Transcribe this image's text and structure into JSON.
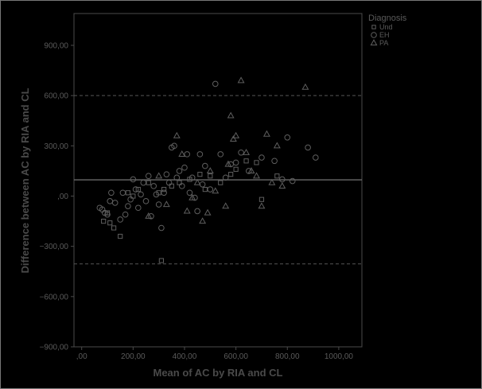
{
  "chart_data": {
    "type": "scatter",
    "title": "",
    "xlabel": "Mean of AC by RIA and CL",
    "ylabel": "Difference between AC by RIA and CL",
    "xlim": [
      -30,
      1090
    ],
    "ylim": [
      -900,
      1090
    ],
    "x_ticks": [
      {
        "value": 0,
        "label": ",00"
      },
      {
        "value": 200,
        "label": "200,00"
      },
      {
        "value": 400,
        "label": "400,00"
      },
      {
        "value": 600,
        "label": "600,00"
      },
      {
        "value": 800,
        "label": "800,00"
      },
      {
        "value": 1000,
        "label": "1000,00"
      }
    ],
    "y_ticks": [
      {
        "value": -900,
        "label": "−900,00"
      },
      {
        "value": -600,
        "label": "−600,00"
      },
      {
        "value": -300,
        "label": "−300,00"
      },
      {
        "value": 0,
        "label": ",00"
      },
      {
        "value": 300,
        "label": "300,00"
      },
      {
        "value": 600,
        "label": "600,00"
      },
      {
        "value": 900,
        "label": "900,00"
      }
    ],
    "reference_lines": [
      {
        "y": 600,
        "style": "dashed"
      },
      {
        "y": 97,
        "style": "solid"
      },
      {
        "y": -405,
        "style": "dashed"
      }
    ],
    "legend": {
      "title": "Diagnosis",
      "position": "top-right",
      "entries": [
        {
          "name": "Und",
          "marker": "square"
        },
        {
          "name": "EH",
          "marker": "circle"
        },
        {
          "name": "PA",
          "marker": "triangle"
        }
      ]
    },
    "grid": false,
    "series": [
      {
        "name": "Und",
        "marker": "square",
        "x": [
          85,
          100,
          110,
          125,
          150,
          180,
          200,
          220,
          260,
          300,
          310,
          320,
          350,
          380,
          420,
          460,
          480,
          500,
          540,
          580,
          600,
          640,
          680,
          700,
          760
        ],
        "y": [
          -150,
          -100,
          -160,
          -190,
          -240,
          20,
          0,
          40,
          80,
          20,
          -385,
          40,
          60,
          80,
          100,
          130,
          40,
          120,
          80,
          130,
          160,
          210,
          200,
          -20,
          120
        ]
      },
      {
        "name": "EH",
        "marker": "circle",
        "x": [
          70,
          80,
          90,
          100,
          110,
          115,
          130,
          150,
          160,
          170,
          180,
          190,
          200,
          210,
          220,
          230,
          240,
          250,
          260,
          270,
          280,
          290,
          300,
          310,
          320,
          330,
          340,
          350,
          360,
          370,
          380,
          390,
          400,
          410,
          420,
          430,
          440,
          450,
          460,
          470,
          480,
          500,
          520,
          540,
          560,
          580,
          600,
          620,
          650,
          700,
          750,
          780,
          800,
          820,
          880,
          910
        ],
        "y": [
          -70,
          -80,
          -100,
          -110,
          -30,
          20,
          -40,
          -140,
          20,
          -110,
          -60,
          -20,
          100,
          40,
          -70,
          10,
          80,
          -30,
          120,
          -120,
          60,
          10,
          -50,
          -190,
          20,
          130,
          80,
          290,
          300,
          110,
          150,
          60,
          170,
          250,
          20,
          110,
          -10,
          -90,
          250,
          70,
          180,
          40,
          670,
          250,
          110,
          190,
          200,
          260,
          150,
          230,
          210,
          100,
          350,
          90,
          290,
          230
        ]
      },
      {
        "name": "PA",
        "marker": "triangle",
        "x": [
          260,
          300,
          330,
          370,
          390,
          410,
          430,
          450,
          470,
          490,
          500,
          520,
          560,
          570,
          580,
          590,
          600,
          620,
          640,
          660,
          680,
          700,
          720,
          740,
          760,
          780,
          870
        ],
        "y": [
          -120,
          120,
          -50,
          360,
          250,
          -90,
          -10,
          80,
          -150,
          -100,
          150,
          30,
          -60,
          190,
          480,
          340,
          360,
          690,
          260,
          150,
          120,
          -60,
          370,
          80,
          300,
          60,
          650
        ]
      }
    ]
  }
}
